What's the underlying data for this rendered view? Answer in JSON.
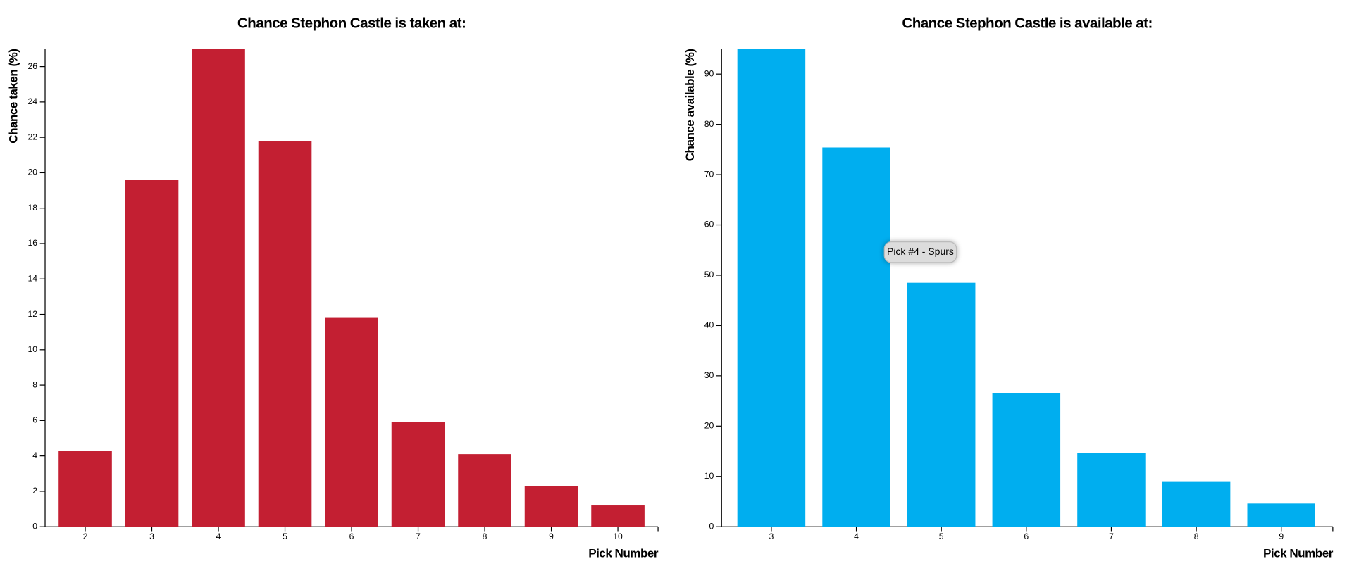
{
  "chart_data": [
    {
      "type": "bar",
      "title": "Chance Stephon Castle is taken at:",
      "y_label": "Chance taken (%)",
      "x_label": "Pick Number",
      "categories": [
        2,
        3,
        4,
        5,
        6,
        7,
        8,
        9,
        10
      ],
      "values": [
        4.3,
        19.6,
        27,
        21.8,
        11.8,
        5.9,
        4.1,
        2.3,
        1.2
      ],
      "color": "#c31f32",
      "ylim": [
        0,
        27
      ],
      "yticks": [
        0,
        2,
        4,
        6,
        8,
        10,
        12,
        14,
        16,
        18,
        20,
        22,
        24,
        26
      ]
    },
    {
      "type": "bar",
      "title": "Chance Stephon Castle is available at:",
      "y_label": "Chance available (%)",
      "x_label": "Pick Number",
      "categories": [
        3,
        4,
        5,
        6,
        7,
        8,
        9
      ],
      "values": [
        95,
        75.4,
        48.5,
        26.5,
        14.7,
        8.9,
        4.6
      ],
      "color": "#00aeef",
      "ylim": [
        0,
        95
      ],
      "yticks": [
        0,
        10,
        20,
        30,
        40,
        50,
        60,
        70,
        80,
        90
      ],
      "tooltip": "Pick #4 - Spurs"
    }
  ]
}
